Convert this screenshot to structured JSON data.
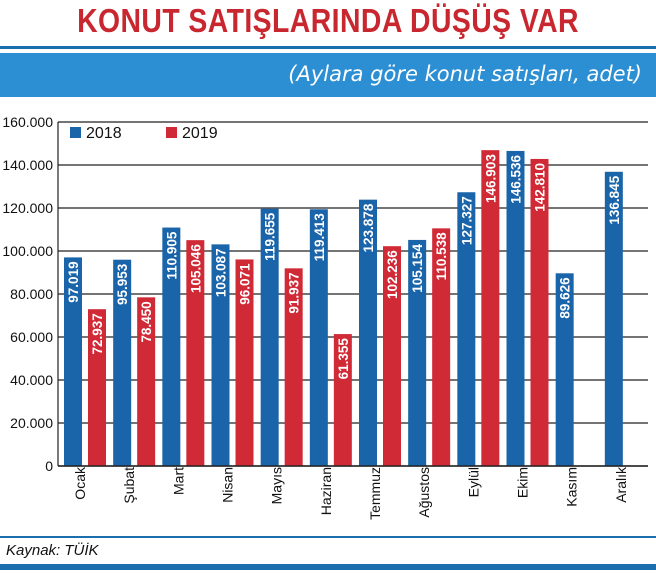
{
  "title": "KONUT SATIŞLARINDA DÜŞÜŞ VAR",
  "subtitle": "(Aylara göre konut satışları, adet)",
  "source": "Kaynak: TÜİK",
  "colors": {
    "s2018": "#1a64aa",
    "s2019": "#d02a36",
    "band": "#2c8fd3",
    "title": "#c8272f"
  },
  "chart_data": {
    "type": "bar",
    "title": "KONUT SATIŞLARINDA DÜŞÜŞ VAR",
    "subtitle": "(Aylara göre konut satışları, adet)",
    "categories": [
      "Ocak",
      "Şubat",
      "Mart",
      "Nisan",
      "Mayıs",
      "Haziran",
      "Temmuz",
      "Ağustos",
      "Eylül",
      "Ekim",
      "Kasım",
      "Aralık"
    ],
    "series": [
      {
        "name": "2018",
        "values": [
          97019,
          95953,
          110905,
          103087,
          119655,
          119413,
          123878,
          105154,
          127327,
          146536,
          89626,
          136845
        ],
        "labels": [
          "97.019",
          "95.953",
          "110.905",
          "103.087",
          "119.655",
          "119.413",
          "123.878",
          "105.154",
          "127.327",
          "146.536",
          "89.626",
          "136.845"
        ]
      },
      {
        "name": "2019",
        "values": [
          72937,
          78450,
          105046,
          96071,
          91937,
          61355,
          102236,
          110538,
          146903,
          142810,
          null,
          null
        ],
        "labels": [
          "72.937",
          "78.450",
          "105.046",
          "96.071",
          "91.937",
          "61.355",
          "102.236",
          "110.538",
          "146.903",
          "142.810",
          null,
          null
        ]
      }
    ],
    "yticks": [
      "0",
      "20.000",
      "40.000",
      "60.000",
      "80.000",
      "100.000",
      "120.000",
      "140.000",
      "160.000"
    ],
    "ylim": [
      0,
      160000
    ],
    "grid": true,
    "legend": "top-left"
  }
}
